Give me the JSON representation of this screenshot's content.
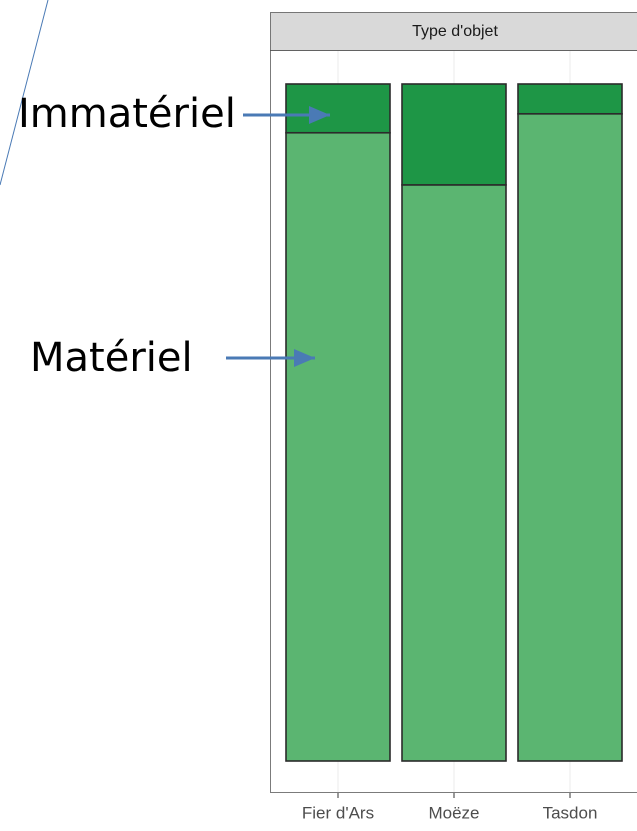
{
  "chart_data": {
    "type": "stacked_bar",
    "strip": "Type d'objet",
    "categories": [
      "Fier d'Ars",
      "Moëze",
      "Tasdon"
    ],
    "series": [
      {
        "name": "Matériel",
        "color": "#5bb571",
        "values": [
          92.8,
          85.1,
          95.6
        ]
      },
      {
        "name": "Immatériel",
        "color": "#1e9646",
        "values": [
          7.2,
          14.9,
          4.4
        ]
      }
    ],
    "ylim": [
      0,
      100
    ]
  }
}
